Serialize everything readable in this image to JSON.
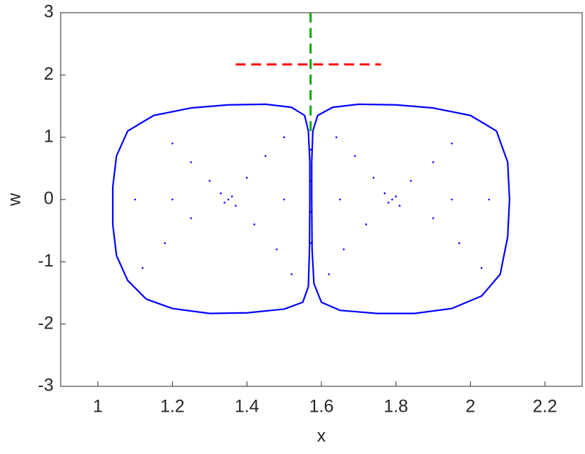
{
  "chart_data": {
    "type": "line",
    "x_label": "x",
    "y_label": "w",
    "xlim": [
      0.9,
      2.3
    ],
    "ylim": [
      -3,
      3
    ],
    "xticks": [
      1,
      1.2,
      1.4,
      1.6,
      1.8,
      2,
      2.2
    ],
    "yticks": [
      -3,
      -2,
      -1,
      0,
      1,
      2,
      3
    ],
    "series": [
      {
        "kind": "line",
        "style": "solid",
        "color": "#0000ff",
        "x": [
          1.565,
          1.555,
          1.52,
          1.45,
          1.35,
          1.25,
          1.15,
          1.08,
          1.05,
          1.04,
          1.04,
          1.05,
          1.08,
          1.13,
          1.2,
          1.3,
          1.4,
          1.5,
          1.55,
          1.565,
          1.568,
          1.569,
          1.569,
          1.565
        ],
        "values": [
          1.1,
          1.35,
          1.48,
          1.53,
          1.52,
          1.47,
          1.35,
          1.1,
          0.7,
          0.2,
          -0.4,
          -0.9,
          -1.3,
          -1.6,
          -1.75,
          -1.83,
          -1.82,
          -1.76,
          -1.65,
          -1.4,
          -0.8,
          0,
          0.6,
          1.1
        ]
      },
      {
        "kind": "line",
        "style": "solid",
        "color": "#0000ff",
        "x": [
          1.577,
          1.59,
          1.63,
          1.7,
          1.8,
          1.9,
          2.0,
          2.07,
          2.1,
          2.105,
          2.1,
          2.08,
          2.03,
          1.95,
          1.85,
          1.75,
          1.65,
          1.6,
          1.58,
          1.575,
          1.574,
          1.574,
          1.577
        ],
        "values": [
          1.1,
          1.35,
          1.48,
          1.53,
          1.52,
          1.47,
          1.35,
          1.1,
          0.6,
          0,
          -0.6,
          -1.2,
          -1.55,
          -1.75,
          -1.83,
          -1.83,
          -1.78,
          -1.65,
          -1.35,
          -0.8,
          0,
          0.6,
          1.1
        ]
      },
      {
        "kind": "scatter",
        "color": "#0000ff",
        "x": [
          1.35,
          1.33,
          1.37,
          1.36,
          1.34,
          1.3,
          1.25,
          1.2,
          1.4,
          1.45,
          1.5,
          1.25,
          1.18,
          1.12,
          1.42,
          1.48,
          1.52,
          1.2,
          1.1,
          1.5,
          1.79,
          1.77,
          1.81,
          1.8,
          1.78,
          1.84,
          1.9,
          1.95,
          1.74,
          1.69,
          1.64,
          1.9,
          1.97,
          2.03,
          1.72,
          1.66,
          1.62,
          1.95,
          2.05,
          1.65,
          1.571,
          1.571,
          1.571,
          1.571
        ],
        "values": [
          0,
          0.1,
          -0.1,
          0.05,
          -0.05,
          0.3,
          0.6,
          0.9,
          0.35,
          0.7,
          1.0,
          -0.3,
          -0.7,
          -1.1,
          -0.4,
          -0.8,
          -1.2,
          0,
          0,
          0,
          0,
          0.1,
          -0.1,
          0.05,
          -0.05,
          0.3,
          0.6,
          0.9,
          0.35,
          0.7,
          1.0,
          -0.3,
          -0.7,
          -1.1,
          -0.4,
          -0.8,
          -1.2,
          0,
          0,
          0,
          0.8,
          0.3,
          -0.2,
          -0.7
        ]
      },
      {
        "kind": "line",
        "style": "dashed",
        "color": "#00aa00",
        "x": [
          1.571,
          1.571
        ],
        "values": [
          1.1,
          3
        ]
      },
      {
        "kind": "line",
        "style": "dashed",
        "color": "#ff0000",
        "x": [
          1.37,
          1.76
        ],
        "values": [
          2.17,
          2.17
        ]
      }
    ]
  }
}
